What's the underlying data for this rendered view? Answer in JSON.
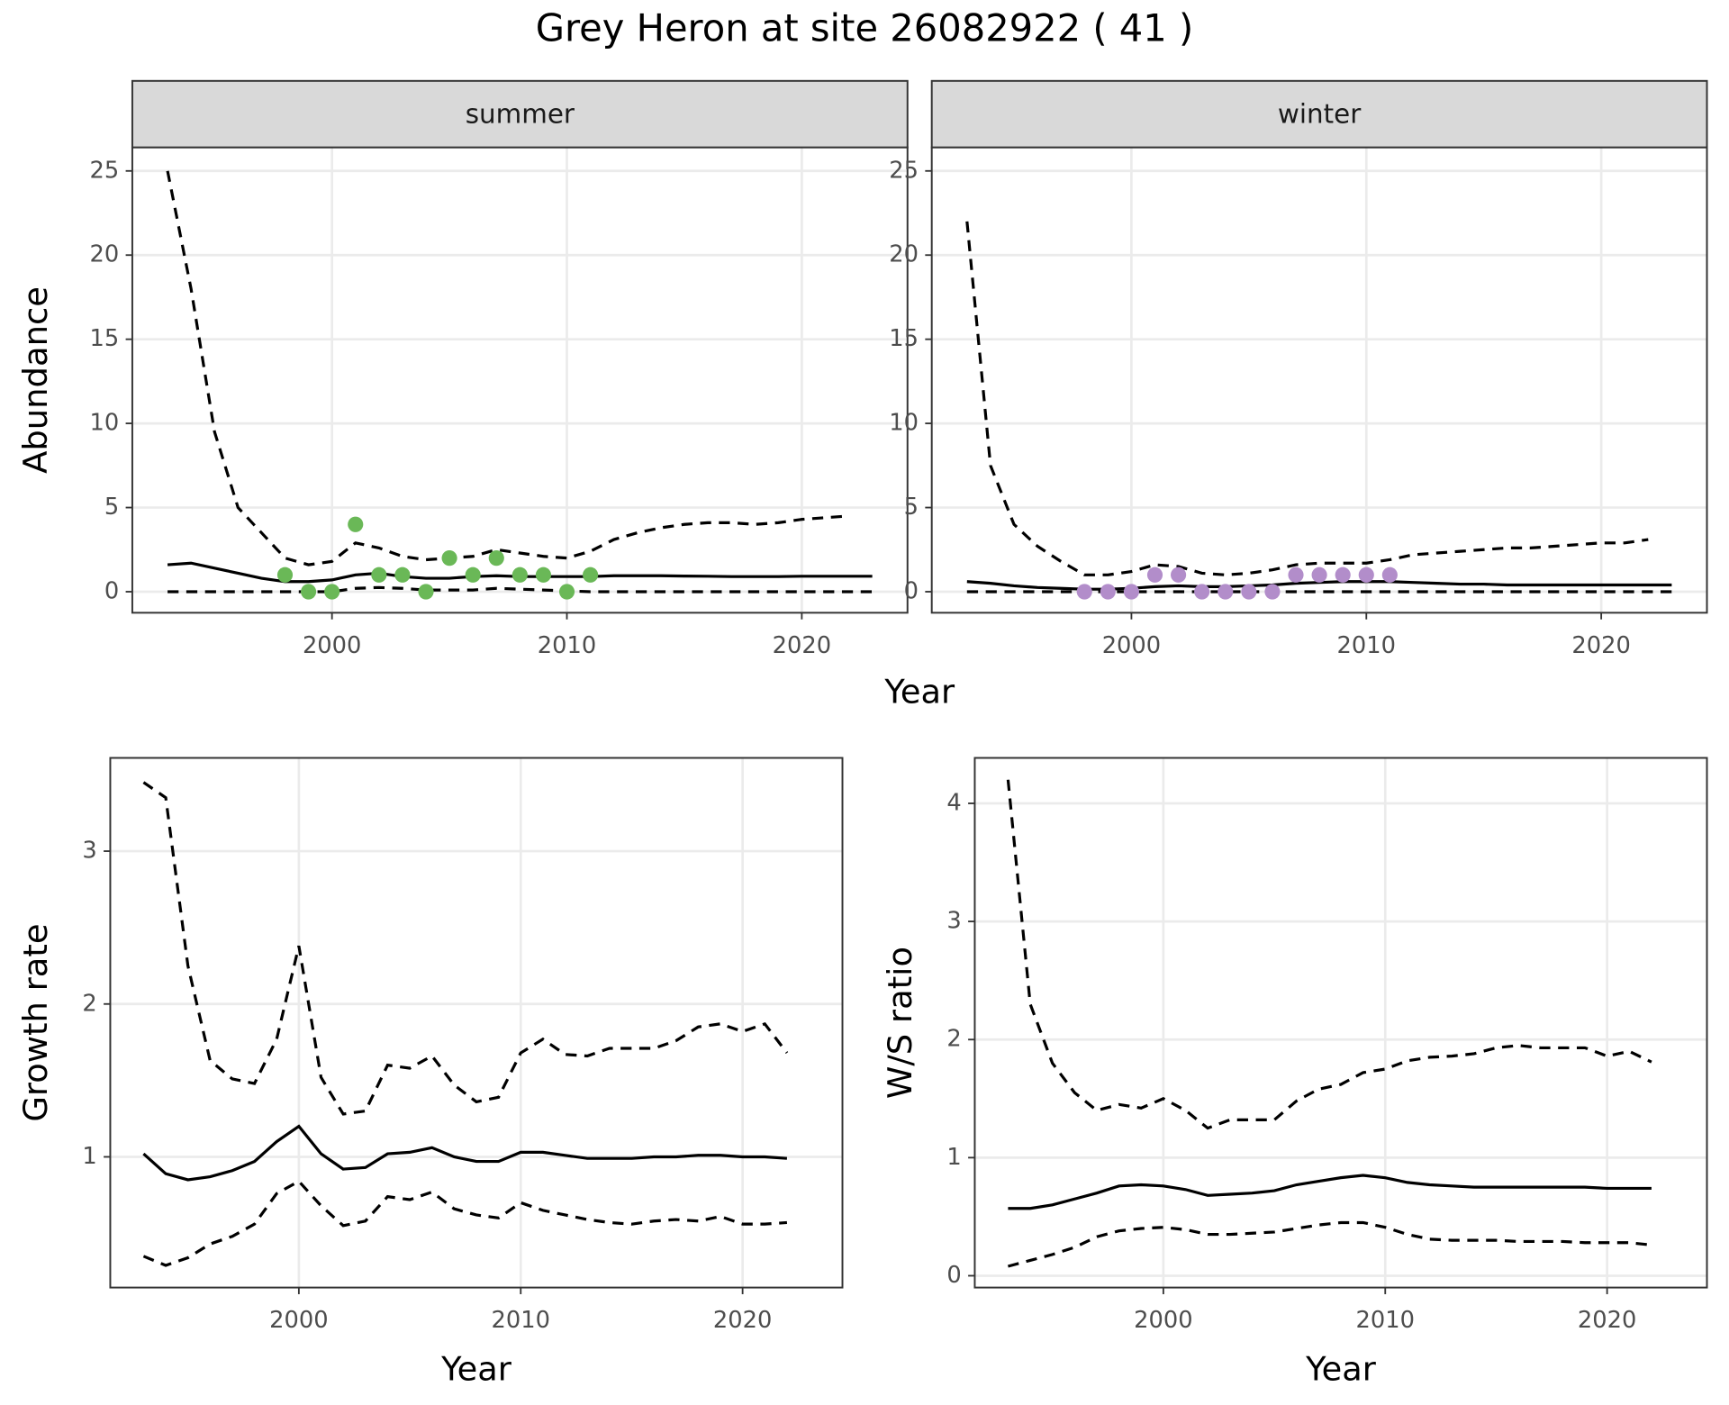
{
  "title": "Grey Heron at site 26082922 ( 41 )",
  "chart_data": [
    {
      "type": "line",
      "facet": "summer",
      "xlabel": "Year",
      "ylabel": "Abundance",
      "grid": true,
      "xlim": [
        1991.5,
        2024.5
      ],
      "xticks": [
        2000,
        2010,
        2020
      ],
      "ylim": [
        -1.25,
        26.4
      ],
      "yticks": [
        0,
        5,
        10,
        15,
        20,
        25
      ],
      "x": [
        1993,
        1994,
        1995,
        1996,
        1997,
        1998,
        1999,
        2000,
        2001,
        2002,
        2003,
        2004,
        2005,
        2006,
        2007,
        2008,
        2009,
        2010,
        2011,
        2012,
        2013,
        2014,
        2015,
        2016,
        2017,
        2018,
        2019,
        2020,
        2021,
        2022,
        2023
      ],
      "series": [
        {
          "color": "#000000",
          "linestyle": "dashed",
          "values": [
            25,
            18,
            9.5,
            5,
            3.5,
            2.0,
            1.6,
            1.8,
            2.9,
            2.6,
            2.1,
            1.9,
            2.0,
            2.1,
            2.5,
            2.3,
            2.1,
            2.0,
            2.4,
            3.1,
            3.5,
            3.8,
            4.0,
            4.1,
            4.1,
            4.0,
            4.1,
            4.3,
            4.4,
            4.5,
            null
          ]
        },
        {
          "color": "#000000",
          "linestyle": "solid",
          "values": [
            1.6,
            1.7,
            1.4,
            1.1,
            0.8,
            0.6,
            0.6,
            0.7,
            1.0,
            1.1,
            0.9,
            0.8,
            0.8,
            0.9,
            0.95,
            0.9,
            0.9,
            0.9,
            0.9,
            0.95,
            0.95,
            0.95,
            0.93,
            0.92,
            0.9,
            0.9,
            0.9,
            0.92,
            0.92,
            0.92,
            0.92
          ]
        },
        {
          "color": "#000000",
          "linestyle": "dashed",
          "values": [
            0,
            0,
            0,
            0,
            0,
            0,
            0,
            0,
            0.2,
            0.25,
            0.2,
            0.1,
            0.1,
            0.1,
            0.2,
            0.15,
            0.1,
            0.05,
            0,
            0,
            0,
            0,
            0,
            0,
            0,
            0,
            0,
            0,
            0,
            0,
            0
          ]
        }
      ],
      "observations": {
        "color": "#6ab857",
        "x": [
          1998,
          1999,
          2000,
          2001,
          2002,
          2003,
          2004,
          2005,
          2006,
          2007,
          2008,
          2009,
          2010,
          2011
        ],
        "values": [
          1,
          0,
          0,
          4,
          1,
          1,
          0,
          2,
          1,
          2,
          1,
          1,
          0,
          1
        ]
      }
    },
    {
      "type": "line",
      "facet": "winter",
      "grid": true,
      "xlim": [
        1991.5,
        2024.5
      ],
      "xticks": [
        2000,
        2010,
        2020
      ],
      "ylim": [
        -1.25,
        26.4
      ],
      "yticks": [
        0,
        5,
        10,
        15,
        20,
        25
      ],
      "x": [
        1993,
        1994,
        1995,
        1996,
        1997,
        1998,
        1999,
        2000,
        2001,
        2002,
        2003,
        2004,
        2005,
        2006,
        2007,
        2008,
        2009,
        2010,
        2011,
        2012,
        2013,
        2014,
        2015,
        2016,
        2017,
        2018,
        2019,
        2020,
        2021,
        2022,
        2023
      ],
      "series": [
        {
          "color": "#000000",
          "linestyle": "dashed",
          "values": [
            22,
            7.5,
            4.0,
            2.7,
            1.8,
            1.0,
            1.0,
            1.2,
            1.6,
            1.5,
            1.1,
            1.0,
            1.1,
            1.3,
            1.6,
            1.7,
            1.7,
            1.7,
            1.9,
            2.2,
            2.3,
            2.4,
            2.5,
            2.6,
            2.6,
            2.7,
            2.8,
            2.9,
            2.9,
            3.1,
            null
          ]
        },
        {
          "color": "#000000",
          "linestyle": "solid",
          "values": [
            0.6,
            0.5,
            0.35,
            0.25,
            0.2,
            0.15,
            0.15,
            0.2,
            0.3,
            0.35,
            0.3,
            0.3,
            0.35,
            0.4,
            0.5,
            0.55,
            0.6,
            0.6,
            0.6,
            0.55,
            0.5,
            0.45,
            0.45,
            0.4,
            0.4,
            0.4,
            0.4,
            0.4,
            0.4,
            0.4,
            0.4
          ]
        },
        {
          "color": "#000000",
          "linestyle": "dashed",
          "values": [
            0,
            0,
            0,
            0,
            0,
            0,
            0,
            0,
            0,
            0,
            0,
            0,
            0,
            0,
            0,
            0,
            0,
            0,
            0,
            0,
            0,
            0,
            0,
            0,
            0,
            0,
            0,
            0,
            0,
            0,
            0
          ]
        }
      ],
      "observations": {
        "color": "#b28dca",
        "x": [
          1998,
          1999,
          2000,
          2001,
          2002,
          2003,
          2004,
          2005,
          2006,
          2007,
          2008,
          2009,
          2010,
          2011
        ],
        "values": [
          0,
          0,
          0,
          1,
          1,
          0,
          0,
          0,
          0,
          1,
          1,
          1,
          1,
          1
        ]
      }
    },
    {
      "type": "line",
      "xlabel": "Year",
      "ylabel": "Growth rate",
      "grid": true,
      "xlim": [
        1991.5,
        2024.5
      ],
      "xticks": [
        2000,
        2010,
        2020
      ],
      "ylim": [
        0.145,
        3.61
      ],
      "yticks": [
        1,
        2,
        3
      ],
      "x": [
        1993,
        1994,
        1995,
        1996,
        1997,
        1998,
        1999,
        2000,
        2001,
        2002,
        2003,
        2004,
        2005,
        2006,
        2007,
        2008,
        2009,
        2010,
        2011,
        2012,
        2013,
        2014,
        2015,
        2016,
        2017,
        2018,
        2019,
        2020,
        2021,
        2022
      ],
      "series": [
        {
          "color": "#000000",
          "linestyle": "dashed",
          "values": [
            3.45,
            3.35,
            2.25,
            1.63,
            1.51,
            1.48,
            1.77,
            2.38,
            1.52,
            1.28,
            1.3,
            1.6,
            1.58,
            1.66,
            1.47,
            1.36,
            1.39,
            1.68,
            1.77,
            1.67,
            1.66,
            1.71,
            1.71,
            1.71,
            1.76,
            1.85,
            1.87,
            1.82,
            1.87,
            1.68
          ]
        },
        {
          "color": "#000000",
          "linestyle": "solid",
          "values": [
            1.02,
            0.89,
            0.85,
            0.87,
            0.91,
            0.97,
            1.1,
            1.2,
            1.02,
            0.92,
            0.93,
            1.02,
            1.03,
            1.06,
            1.0,
            0.97,
            0.97,
            1.03,
            1.03,
            1.01,
            0.99,
            0.99,
            0.99,
            1.0,
            1.0,
            1.01,
            1.01,
            1.0,
            1.0,
            0.99
          ]
        },
        {
          "color": "#000000",
          "linestyle": "dashed",
          "values": [
            0.35,
            0.29,
            0.34,
            0.43,
            0.48,
            0.56,
            0.76,
            0.84,
            0.68,
            0.55,
            0.58,
            0.74,
            0.72,
            0.77,
            0.66,
            0.62,
            0.6,
            0.7,
            0.65,
            0.62,
            0.59,
            0.57,
            0.56,
            0.58,
            0.59,
            0.58,
            0.61,
            0.56,
            0.56,
            0.57
          ]
        }
      ]
    },
    {
      "type": "line",
      "xlabel": "Year",
      "ylabel": "W/S ratio",
      "grid": true,
      "xlim": [
        1991.5,
        2024.5
      ],
      "xticks": [
        2000,
        2010,
        2020
      ],
      "ylim": [
        -0.1,
        4.385
      ],
      "yticks": [
        0,
        1,
        2,
        3,
        4
      ],
      "x": [
        1993,
        1994,
        1995,
        1996,
        1997,
        1998,
        1999,
        2000,
        2001,
        2002,
        2003,
        2004,
        2005,
        2006,
        2007,
        2008,
        2009,
        2010,
        2011,
        2012,
        2013,
        2014,
        2015,
        2016,
        2017,
        2018,
        2019,
        2020,
        2021,
        2022
      ],
      "series": [
        {
          "color": "#000000",
          "linestyle": "dashed",
          "values": [
            4.2,
            2.3,
            1.8,
            1.55,
            1.4,
            1.45,
            1.42,
            1.5,
            1.4,
            1.25,
            1.32,
            1.32,
            1.32,
            1.48,
            1.58,
            1.62,
            1.72,
            1.75,
            1.82,
            1.85,
            1.86,
            1.88,
            1.93,
            1.95,
            1.93,
            1.93,
            1.93,
            1.86,
            1.9,
            1.81
          ]
        },
        {
          "color": "#000000",
          "linestyle": "solid",
          "values": [
            0.57,
            0.57,
            0.6,
            0.65,
            0.7,
            0.76,
            0.77,
            0.76,
            0.73,
            0.68,
            0.69,
            0.7,
            0.72,
            0.77,
            0.8,
            0.83,
            0.85,
            0.83,
            0.79,
            0.77,
            0.76,
            0.75,
            0.75,
            0.75,
            0.75,
            0.75,
            0.75,
            0.74,
            0.74,
            0.74
          ]
        },
        {
          "color": "#000000",
          "linestyle": "dashed",
          "values": [
            0.08,
            0.13,
            0.18,
            0.24,
            0.33,
            0.38,
            0.4,
            0.41,
            0.39,
            0.35,
            0.35,
            0.36,
            0.37,
            0.4,
            0.43,
            0.45,
            0.45,
            0.41,
            0.35,
            0.31,
            0.3,
            0.3,
            0.3,
            0.29,
            0.29,
            0.29,
            0.28,
            0.28,
            0.28,
            0.26
          ]
        }
      ]
    }
  ]
}
